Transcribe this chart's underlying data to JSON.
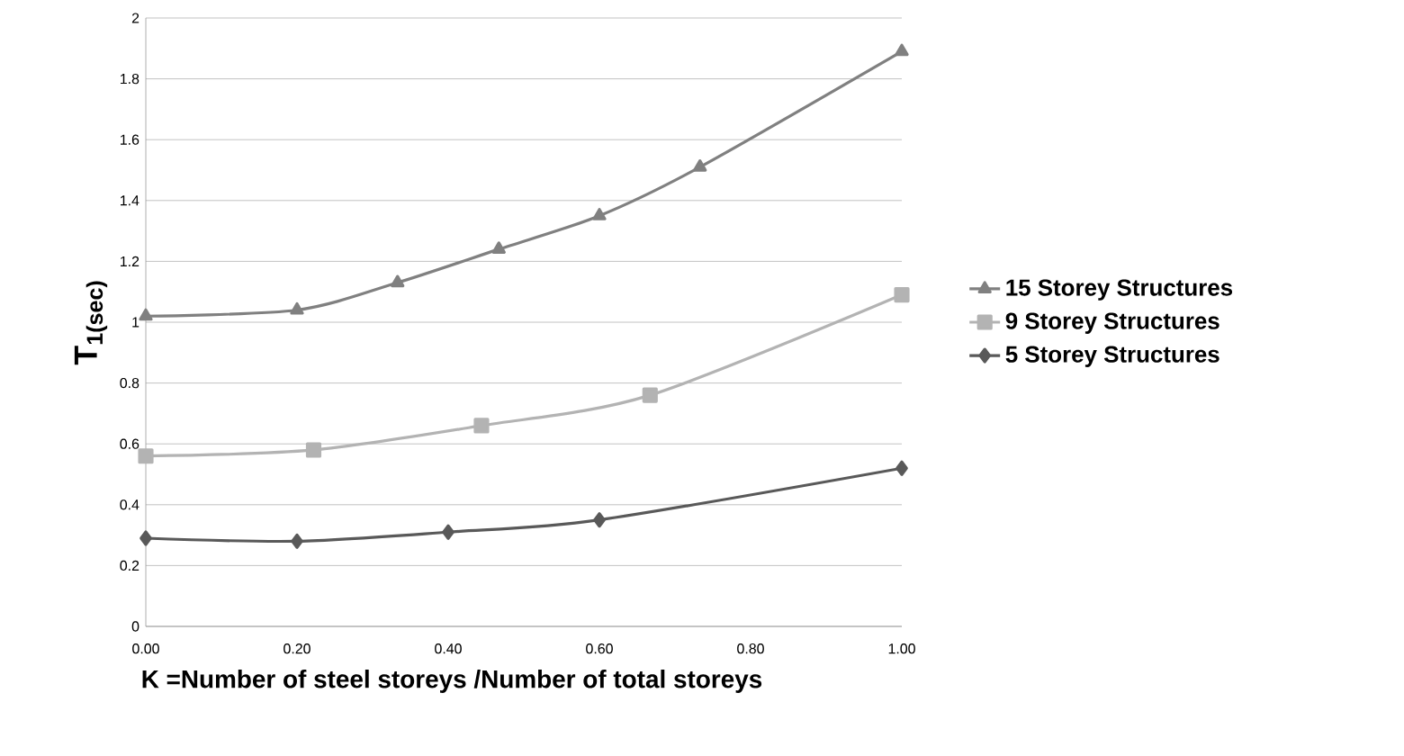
{
  "chart_data": {
    "type": "line",
    "xlabel": "K =Number of steel storeys /Number of total storeys",
    "ylabel": "T$_{1(sec)}$",
    "xlim": [
      0,
      1
    ],
    "ylim": [
      0,
      2
    ],
    "xticks": [
      {
        "value": 0,
        "label": "0.00"
      },
      {
        "value": 0.2,
        "label": "0.20"
      },
      {
        "value": 0.4,
        "label": "0.40"
      },
      {
        "value": 0.6,
        "label": "0.60"
      },
      {
        "value": 0.8,
        "label": "0.80"
      },
      {
        "value": 1,
        "label": "1.00"
      }
    ],
    "yticks": [
      0,
      0.2,
      0.4,
      0.6,
      0.8,
      1,
      1.2,
      1.4,
      1.6,
      1.8,
      2
    ],
    "grid": "y",
    "legend": "right",
    "line_style": "solid",
    "series": [
      {
        "name": "15 Storey Structures",
        "color": "#808080",
        "marker": "triangle",
        "x": [
          0,
          0.2,
          0.333,
          0.467,
          0.6,
          0.733,
          1
        ],
        "values": [
          1.02,
          1.04,
          1.13,
          1.24,
          1.35,
          1.51,
          1.89
        ]
      },
      {
        "name": "9 Storey Structures",
        "color": "#b3b3b3",
        "marker": "square",
        "x": [
          0,
          0.222,
          0.444,
          0.667,
          1
        ],
        "values": [
          0.56,
          0.58,
          0.66,
          0.76,
          1.09
        ]
      },
      {
        "name": "5 Storey Structures",
        "color": "#595959",
        "marker": "diamond",
        "x": [
          0,
          0.2,
          0.4,
          0.6,
          1
        ],
        "values": [
          0.29,
          0.28,
          0.31,
          0.35,
          0.52
        ]
      }
    ]
  }
}
